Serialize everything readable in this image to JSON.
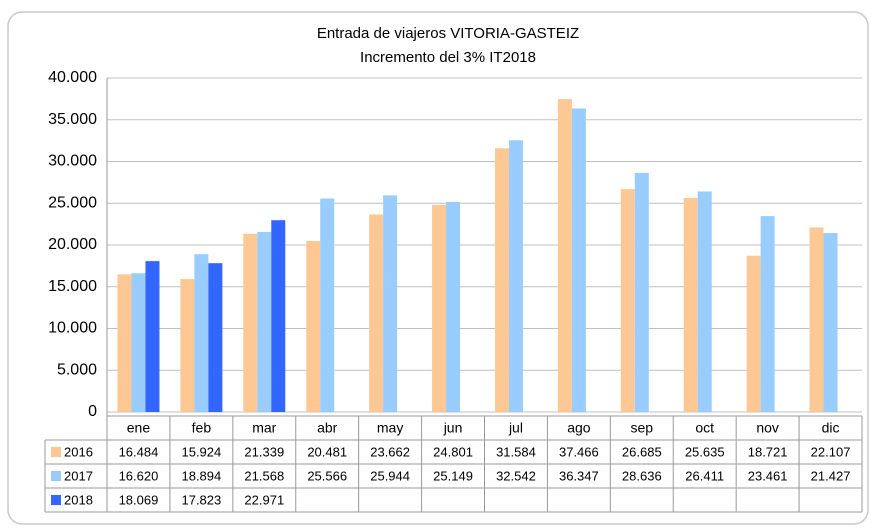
{
  "chart_data": {
    "type": "bar",
    "title": "Entrada de viajeros VITORIA-GASTEIZ",
    "subtitle": "Incremento del 3% IT2018",
    "categories": [
      "ene",
      "feb",
      "mar",
      "abr",
      "may",
      "jun",
      "jul",
      "ago",
      "sep",
      "oct",
      "nov",
      "dic"
    ],
    "series": [
      {
        "name": "2016",
        "color": "#fdc894",
        "values": [
          16484,
          15924,
          21339,
          20481,
          23662,
          24801,
          31584,
          37466,
          26685,
          25635,
          18721,
          22107
        ],
        "value_labels": [
          "16.484",
          "15.924",
          "21.339",
          "20.481",
          "23.662",
          "24.801",
          "31.584",
          "37.466",
          "26.685",
          "25.635",
          "18.721",
          "22.107"
        ]
      },
      {
        "name": "2017",
        "color": "#99ccff",
        "values": [
          16620,
          18894,
          21568,
          25566,
          25944,
          25149,
          32542,
          36347,
          28636,
          26411,
          23461,
          21427
        ],
        "value_labels": [
          "16.620",
          "18.894",
          "21.568",
          "25.566",
          "25.944",
          "25.149",
          "32.542",
          "36.347",
          "28.636",
          "26.411",
          "23.461",
          "21.427"
        ]
      },
      {
        "name": "2018",
        "color": "#3366ff",
        "values": [
          18069,
          17823,
          22971,
          null,
          null,
          null,
          null,
          null,
          null,
          null,
          null,
          null
        ],
        "value_labels": [
          "18.069",
          "17.823",
          "22.971",
          null,
          null,
          null,
          null,
          null,
          null,
          null,
          null,
          null
        ]
      }
    ],
    "ylim": [
      0,
      40000
    ],
    "yticks": [
      0,
      {
        "value": 5000,
        "label": "5.000"
      },
      {
        "value": 10000,
        "label": "10.000"
      },
      {
        "value": 15000,
        "label": "15.000"
      },
      {
        "value": 20000,
        "label": "20.000"
      },
      {
        "value": 25000,
        "label": "25.000"
      },
      {
        "value": 30000,
        "label": "30.000"
      },
      {
        "value": 35000,
        "label": "35.000"
      },
      {
        "value": 40000,
        "label": "40.000"
      }
    ],
    "grid": true
  }
}
